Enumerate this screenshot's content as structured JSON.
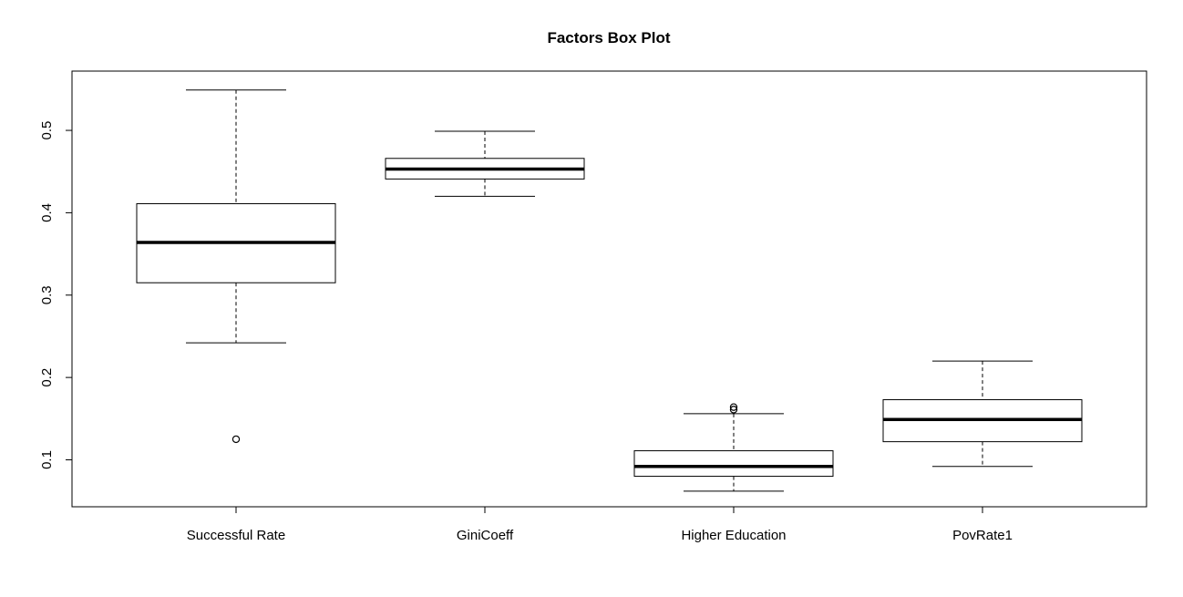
{
  "chart_data": {
    "type": "boxplot",
    "title": "Factors Box Plot",
    "xlabel": "",
    "ylabel": "",
    "ylim": [
      0.043,
      0.572
    ],
    "yticks": [
      0.1,
      0.2,
      0.3,
      0.4,
      0.5
    ],
    "ytick_labels": [
      "0.1",
      "0.2",
      "0.3",
      "0.4",
      "0.5"
    ],
    "grid": false,
    "categories": [
      "Successful Rate",
      "GiniCoeff",
      "Higher Education",
      "PovRate1"
    ],
    "boxes": [
      {
        "name": "Successful Rate",
        "whisker_low": 0.242,
        "q1": 0.315,
        "median": 0.364,
        "q3": 0.411,
        "whisker_high": 0.549,
        "outliers": [
          0.125
        ]
      },
      {
        "name": "GiniCoeff",
        "whisker_low": 0.42,
        "q1": 0.441,
        "median": 0.453,
        "q3": 0.466,
        "whisker_high": 0.499,
        "outliers": []
      },
      {
        "name": "Higher Education",
        "whisker_low": 0.062,
        "q1": 0.08,
        "median": 0.092,
        "q3": 0.111,
        "whisker_high": 0.156,
        "outliers": [
          0.161,
          0.164
        ]
      },
      {
        "name": "PovRate1",
        "whisker_low": 0.092,
        "q1": 0.122,
        "median": 0.149,
        "q3": 0.173,
        "whisker_high": 0.22,
        "outliers": []
      }
    ],
    "colors": {
      "box_fill": "#ffffff",
      "stroke": "#000000"
    }
  }
}
